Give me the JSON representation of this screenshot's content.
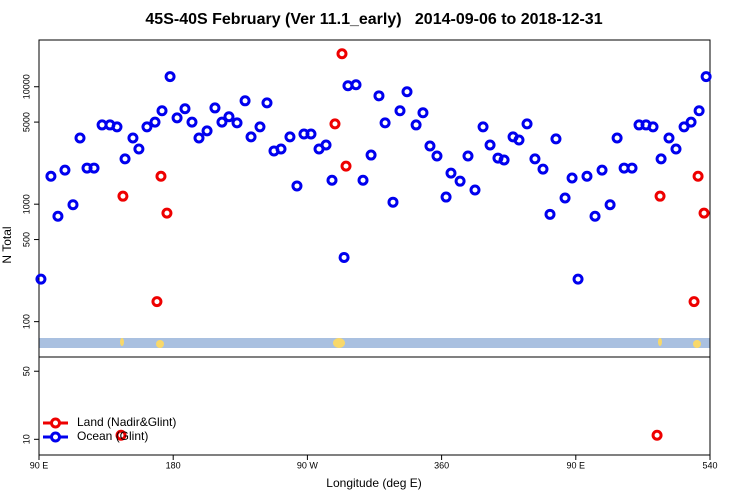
{
  "chart_data": [
    {
      "type": "scatter",
      "title": "45S-40S February (Ver 11.1_early)   2014-09-06 to 2018-12-31",
      "ylabel": "N Total",
      "xlim": [
        90,
        540
      ],
      "ylim": [
        50,
        25000
      ],
      "log_y": true,
      "yticks": [
        100,
        500,
        1000,
        5000,
        10000
      ],
      "series": [
        {
          "color": "#0000ee",
          "x": [
            91.3,
            98,
            102.7,
            107.4,
            112.8,
            117.5,
            122.2,
            126.9,
            132.3,
            137.6,
            142.3,
            147.7,
            153,
            157,
            162.4,
            167.8,
            172.5,
            177.9,
            182.6,
            187.9,
            192.6,
            197.3,
            202.7,
            208,
            212.7,
            217.4,
            222.8,
            228.2,
            232.2,
            238.2,
            242.9,
            247.6,
            252.3,
            258.3,
            263,
            267.7,
            272.4,
            277.8,
            282.5,
            286.5,
            294.6,
            297.2,
            302.6,
            307.3,
            312.7,
            318,
            322.1,
            327.4,
            332.1,
            336.8,
            342.9,
            347.5,
            352.2,
            356.9,
            363,
            366.3,
            372.4,
            377.7,
            382.4,
            387.8,
            392.5,
            397.8,
            401.9,
            407.9,
            411.9,
            417.3,
            422.6,
            428,
            432.7,
            436.7,
            442.8,
            447.5,
            451.5,
            457.5,
            462.9,
            467.6,
            473,
            477.7,
            482.4,
            487.7,
            492.4,
            497.1,
            501.8,
            507.2,
            512.5,
            517.2,
            522.6,
            527.3,
            532.7,
            537.4
          ],
          "values": [
            230,
            1730,
            790,
            1950,
            990,
            3660,
            2030,
            2030,
            4730,
            4730,
            4550,
            2430,
            3660,
            2950,
            4550,
            5000,
            6240,
            12200,
            5430,
            6490,
            5000,
            3660,
            4210,
            6600,
            5000,
            5550,
            4920,
            7590,
            3740,
            4550,
            7290,
            2840,
            2950,
            3740,
            1430,
            3960,
            3960,
            2950,
            3190,
            1600,
            352,
            10200,
            10400,
            1600,
            2620,
            8370,
            4920,
            1040,
            6240,
            9060,
            4730,
            6000,
            3130,
            2570,
            1150,
            1840,
            1570,
            2570,
            1320,
            4550,
            3190,
            2470,
            2380,
            3740,
            3520,
            4830,
            2430,
            1990,
            820,
            3600,
            1130,
            1670,
            230,
            1730,
            790,
            1950,
            990,
            3660,
            2030,
            2030,
            4730,
            4730,
            4550,
            2430,
            3660,
            2950,
            4550,
            5000,
            6240,
            12200
          ]
        },
        {
          "color": "#ee0000",
          "x": [
            146.3,
            169.1,
            171.8,
            175.8,
            288.5,
            293.2,
            295.9,
            506.5,
            529.3,
            532,
            536
          ],
          "values": [
            1170,
            148,
            1730,
            840,
            4830,
            19100,
            2110,
            1170,
            148,
            1730,
            840
          ]
        }
      ]
    },
    {
      "type": "scatter",
      "xlabel": "Longitude (deg E)",
      "xlim": [
        90,
        540
      ],
      "ylim": [
        6.9,
        70
      ],
      "log_y": true,
      "legend": "lower left",
      "xticks": [
        {
          "value": 90,
          "label": "90 E"
        },
        180,
        {
          "value": 270,
          "label": "90 W"
        },
        360,
        {
          "value": 450,
          "label": "90 E"
        },
        540
      ],
      "yticks": [
        10,
        50
      ],
      "series": [
        {
          "name": "Land (Nadir&Glint)",
          "color": "#ee0000",
          "x": [
            145,
            504.5
          ],
          "values": [
            11,
            11
          ]
        },
        {
          "name": "Ocean (Glint)",
          "color": "#0000ee",
          "x": [],
          "values": []
        }
      ]
    }
  ]
}
